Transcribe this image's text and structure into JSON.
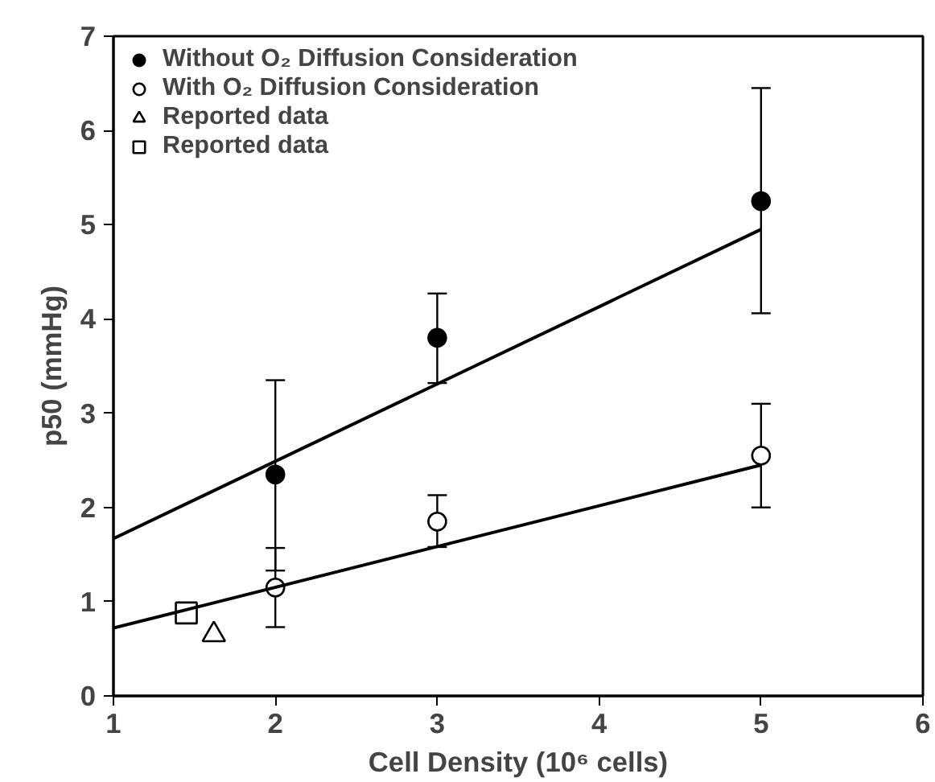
{
  "chart_data": {
    "type": "scatter",
    "xlabel": "Cell Density (10⁶ cells)",
    "ylabel": "p50 (mmHg)",
    "xlim": [
      1,
      6
    ],
    "ylim": [
      0,
      7
    ],
    "xticks": [
      1,
      2,
      3,
      4,
      5,
      6
    ],
    "yticks": [
      0,
      1,
      2,
      3,
      4,
      5,
      6,
      7
    ],
    "grid": false,
    "legend": "top left",
    "series": [
      {
        "name": "Without O₂ Diffusion Consideration",
        "color": "#000000",
        "marker": "circle",
        "x": [
          2,
          3,
          5
        ],
        "values": [
          2.35,
          3.8,
          5.25
        ],
        "errors": [
          [
            1.33,
            3.35
          ],
          [
            3.32,
            4.27
          ],
          [
            4.06,
            6.45
          ]
        ]
      },
      {
        "name": "With O₂ Diffusion Consideration",
        "color": "#ffffff",
        "marker": "circle",
        "x": [
          2,
          3,
          5
        ],
        "values": [
          1.15,
          1.85,
          2.55
        ],
        "errors": [
          [
            0.73,
            1.57
          ],
          [
            1.58,
            2.13
          ],
          [
            2.0,
            3.1
          ]
        ]
      },
      {
        "name": "Reported data",
        "color": "#ffffff",
        "marker": "triangle",
        "x": [
          1.62
        ],
        "values": [
          0.65
        ]
      },
      {
        "name": "Reported data",
        "color": "#ffffff",
        "marker": "square",
        "x": [
          1.45
        ],
        "values": [
          0.88
        ]
      },
      {
        "type": "line",
        "color": "#000000",
        "marker": "none",
        "line_style": "solid",
        "x": [
          1,
          5
        ],
        "values": [
          1.67,
          4.95
        ]
      },
      {
        "type": "line",
        "color": "#000000",
        "marker": "none",
        "line_style": "solid",
        "x": [
          1,
          5
        ],
        "values": [
          0.72,
          2.45
        ]
      }
    ]
  }
}
